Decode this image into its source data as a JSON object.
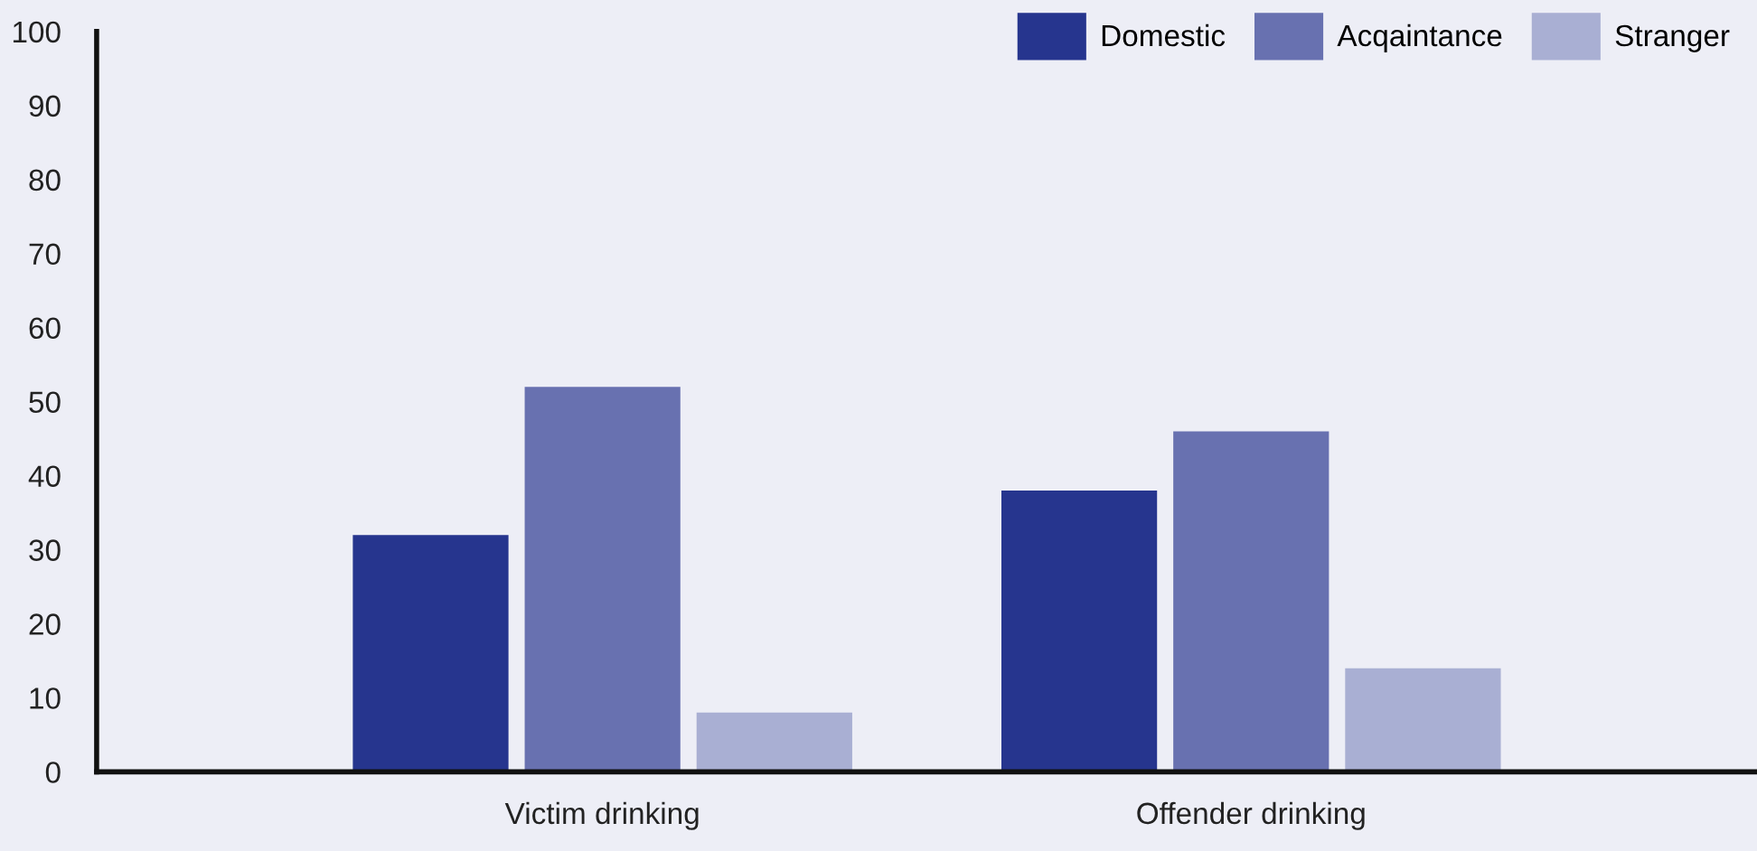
{
  "chart_data": {
    "type": "bar",
    "categories": [
      "Victim drinking",
      "Offender drinking"
    ],
    "series": [
      {
        "name": "Domestic",
        "color": "#26358e",
        "values": [
          32,
          38
        ]
      },
      {
        "name": "Acqaintance",
        "color": "#6871b0",
        "values": [
          52,
          46
        ]
      },
      {
        "name": "Stranger",
        "color": "#a9afd3",
        "values": [
          8,
          14
        ]
      }
    ],
    "ylim": [
      0,
      100
    ],
    "yticks": [
      0,
      10,
      20,
      30,
      40,
      50,
      60,
      70,
      80,
      90,
      100
    ],
    "grid": false,
    "legend": "top right"
  }
}
